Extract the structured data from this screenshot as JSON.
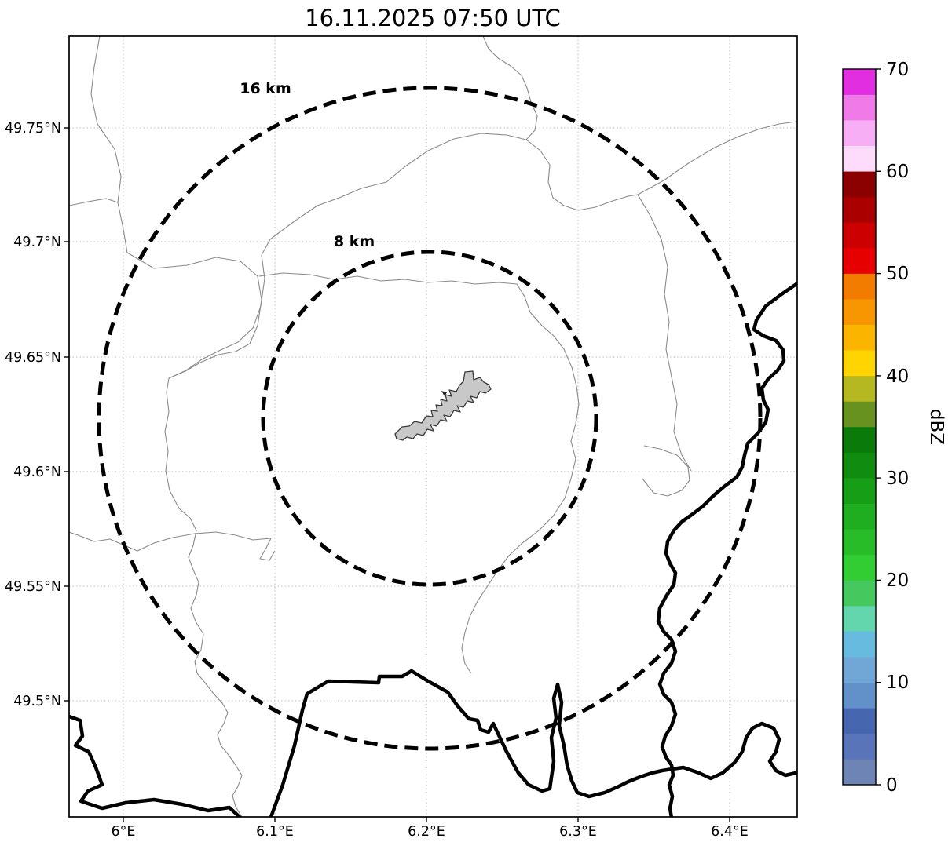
{
  "title": "16.11.2025 07:50 UTC",
  "axes": {
    "x_tick_labels": [
      "6°E",
      "6.1°E",
      "6.2°E",
      "6.3°E",
      "6.4°E"
    ],
    "y_tick_labels": [
      "49.75°N",
      "49.7°N",
      "49.65°N",
      "49.6°N",
      "49.55°N",
      "49.5°N"
    ]
  },
  "rings": {
    "outer_label": "16 km",
    "inner_label": "8 km"
  },
  "colorbar": {
    "label": "dBZ",
    "tick_labels_top_to_bottom": [
      "70",
      "60",
      "50",
      "40",
      "30",
      "20",
      "10",
      "0"
    ],
    "colors_low_to_high": [
      "#6e84b4",
      "#5a74ba",
      "#4667b0",
      "#6191c8",
      "#70a7d7",
      "#66bbdf",
      "#63d6ae",
      "#45c85e",
      "#32cd32",
      "#28bc28",
      "#1fae1f",
      "#179e17",
      "#108c10",
      "#0a7a0a",
      "#68921f",
      "#b5b821",
      "#ffd400",
      "#fbb400",
      "#f79600",
      "#f27c00",
      "#e60000",
      "#cc0000",
      "#aa0000",
      "#8b0000",
      "#fcdcfa",
      "#f8aef5",
      "#f07ae8",
      "#e02ee0"
    ]
  },
  "map_colors": {
    "country_border": "#000000",
    "admin_border": "#8a8a8a",
    "grid": "#c0c0c0",
    "echo_fill": "#c8c8c8",
    "echo_outline": "#3a3a3a"
  },
  "chart_data": {
    "type": "map",
    "title": "16.11.2025 07:50 UTC",
    "description": "Weather radar reflectivity map with range rings; no precipitation echoes above threshold, single gray echo polygon near radar site",
    "x_ticks": [
      "6°E",
      "6.1°E",
      "6.2°E",
      "6.3°E",
      "6.4°E"
    ],
    "y_ticks": [
      "49.75°N",
      "49.7°N",
      "49.65°N",
      "49.6°N",
      "49.55°N",
      "49.5°N"
    ],
    "extent": {
      "lon_min": 5.965,
      "lon_max": 6.445,
      "lat_min": 49.45,
      "lat_max": 49.79
    },
    "radar_center_estimate": {
      "lon": 6.2,
      "lat": 49.62
    },
    "range_rings_km": [
      16,
      8
    ],
    "grid": true,
    "colorbar": {
      "label": "dBZ",
      "min": 0,
      "max": 70,
      "ticks": [
        0,
        10,
        20,
        30,
        40,
        50,
        60,
        70
      ],
      "n_segments": 28,
      "segment_step_dbz": 2.5
    },
    "echoes": [
      {
        "approx_center": {
          "lon": 6.22,
          "lat": 49.625
        },
        "appearance": "gray filled irregular polygon",
        "fill": "#c8c8c8"
      }
    ]
  }
}
